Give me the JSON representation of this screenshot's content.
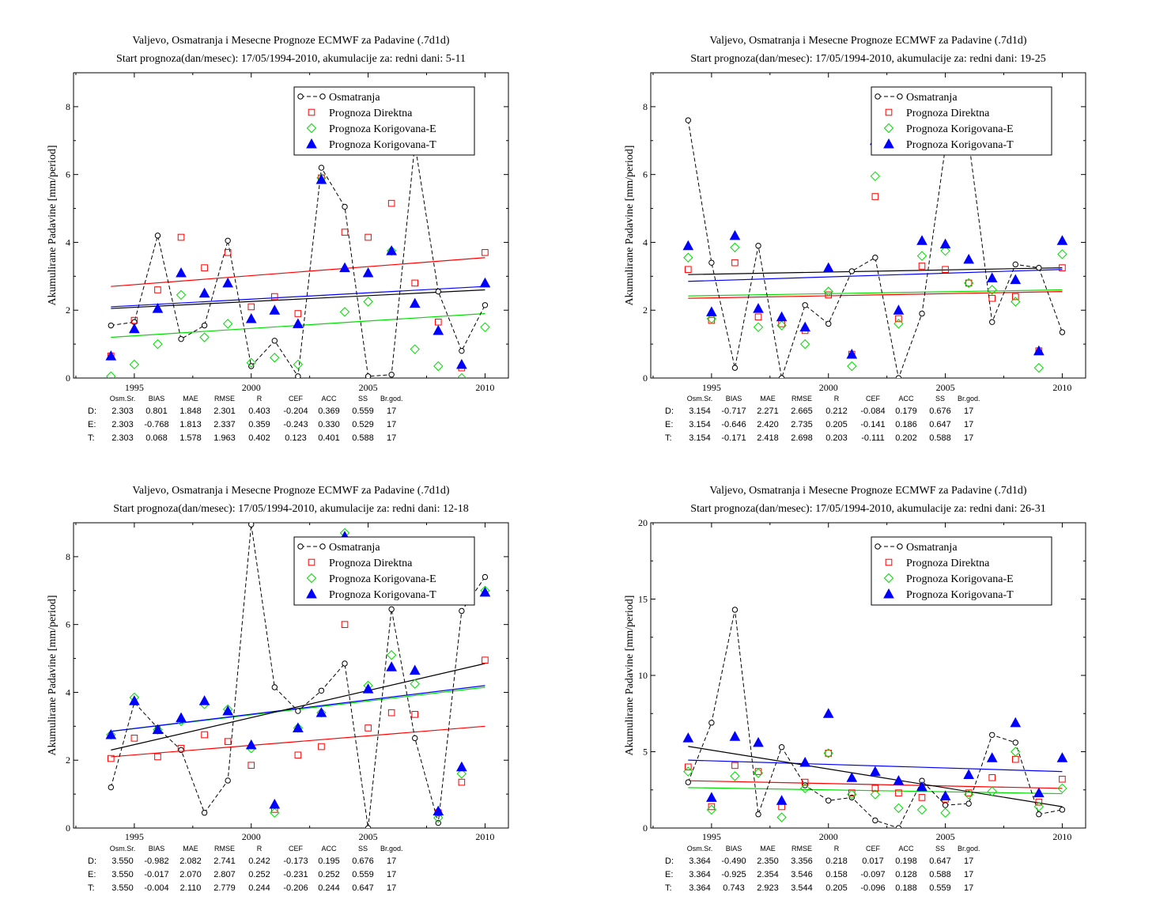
{
  "colors": {
    "obs": "#000000",
    "D": "#ff0000",
    "E": "#00dd00",
    "T": "#0000ff"
  },
  "legend": [
    "Osmatranja",
    "Prognoza Direktna",
    "Prognoza Korigovana-E",
    "Prognoza Korigovana-T"
  ],
  "stats_header": [
    "Osm.Sr.",
    "BIAS",
    "MAE",
    "RMSE",
    "R",
    "CEF",
    "ACC",
    "SS",
    "Br.god."
  ],
  "chart_data": [
    {
      "type": "scatter",
      "title": "Valjevo, Osmatranja i Mesecne Prognoze ECMWF za Padavine (.7d1d)",
      "subtitle": "Start prognoza(dan/mesec): 17/05/1994-2010, akumulacije za: redni dani: 5-11",
      "ylabel": "Akumulirane Padavine [mm/period]",
      "xlabel": "",
      "xlim": [
        1992.4,
        2011.0
      ],
      "ylim": [
        0,
        9
      ],
      "xticks": [
        1995,
        2000,
        2005,
        2010
      ],
      "yticks": [
        0,
        2,
        4,
        6,
        8
      ],
      "x": [
        1994,
        1995,
        1996,
        1997,
        1998,
        1999,
        2000,
        2001,
        2002,
        2003,
        2004,
        2005,
        2006,
        2007,
        2008,
        2009,
        2010
      ],
      "series": [
        {
          "name": "Osmatranja",
          "key": "obs",
          "values": [
            1.55,
            1.65,
            4.2,
            1.15,
            1.55,
            4.05,
            0.35,
            1.1,
            0.05,
            6.2,
            5.05,
            0.05,
            0.1,
            6.9,
            2.55,
            0.8,
            2.15
          ]
        },
        {
          "name": "Prognoza Direktna",
          "key": "D",
          "values": [
            0.65,
            1.7,
            2.6,
            4.15,
            3.25,
            3.7,
            2.1,
            2.4,
            1.9,
            5.9,
            4.3,
            4.15,
            5.15,
            2.8,
            1.65,
            0.3,
            3.7
          ]
        },
        {
          "name": "Prognoza Korigovana-E",
          "key": "E",
          "values": [
            0.05,
            0.4,
            1.0,
            2.45,
            1.2,
            1.6,
            0.45,
            0.6,
            0.4,
            5.9,
            1.95,
            2.25,
            3.75,
            0.85,
            0.35,
            0.0,
            1.5
          ]
        },
        {
          "name": "Prognoza Korigovana-T",
          "key": "T",
          "values": [
            0.65,
            1.45,
            2.05,
            3.1,
            2.5,
            2.8,
            1.75,
            2.0,
            1.6,
            5.85,
            3.25,
            3.1,
            3.75,
            2.2,
            1.4,
            0.4,
            2.8
          ]
        }
      ],
      "trends": {
        "obs": [
          2.05,
          2.6
        ],
        "D": [
          2.7,
          3.55
        ],
        "E": [
          1.2,
          1.9
        ],
        "T": [
          2.1,
          2.7
        ]
      },
      "stats": [
        {
          "label": "D:",
          "key": "D",
          "values": [
            "2.303",
            "0.801",
            "1.848",
            "2.301",
            "0.403",
            "-0.204",
            "0.369",
            "0.559",
            "17"
          ]
        },
        {
          "label": "E:",
          "key": "E",
          "values": [
            "2.303",
            "-0.768",
            "1.813",
            "2.337",
            "0.359",
            "-0.243",
            "0.330",
            "0.529",
            "17"
          ]
        },
        {
          "label": "T:",
          "key": "T",
          "values": [
            "2.303",
            "0.068",
            "1.578",
            "1.963",
            "0.402",
            "0.123",
            "0.401",
            "0.588",
            "17"
          ]
        }
      ]
    },
    {
      "type": "scatter",
      "title": "Valjevo, Osmatranja i Mesecne Prognoze ECMWF za Padavine (.7d1d)",
      "subtitle": "Start prognoza(dan/mesec): 17/05/1994-2010, akumulacije za: redni dani: 19-25",
      "ylabel": "Akumulirane Padavine [mm/period]",
      "xlabel": "",
      "xlim": [
        1992.4,
        2011.0
      ],
      "ylim": [
        0,
        9
      ],
      "xticks": [
        1995,
        2000,
        2005,
        2010
      ],
      "yticks": [
        0,
        2,
        4,
        6,
        8
      ],
      "x": [
        1994,
        1995,
        1996,
        1997,
        1998,
        1999,
        2000,
        2001,
        2002,
        2003,
        2004,
        2005,
        2006,
        2007,
        2008,
        2009,
        2010
      ],
      "series": [
        {
          "name": "Osmatranja",
          "key": "obs",
          "values": [
            7.6,
            3.4,
            0.3,
            3.9,
            0.0,
            2.15,
            1.6,
            3.15,
            3.55,
            0.0,
            1.9,
            6.8,
            7.0,
            1.65,
            3.35,
            3.25,
            1.35
          ]
        },
        {
          "name": "Prognoza Direktna",
          "key": "D",
          "values": [
            3.2,
            1.7,
            3.4,
            1.8,
            1.6,
            1.4,
            2.45,
            0.7,
            5.35,
            1.75,
            3.3,
            3.2,
            2.8,
            2.35,
            2.4,
            0.8,
            3.25
          ]
        },
        {
          "name": "Prognoza Korigovana-E",
          "key": "E",
          "values": [
            3.55,
            1.75,
            3.85,
            1.5,
            1.55,
            1.0,
            2.55,
            0.35,
            5.95,
            1.6,
            3.6,
            3.75,
            2.8,
            2.6,
            2.25,
            0.3,
            3.65
          ]
        },
        {
          "name": "Prognoza Korigovana-T",
          "key": "T",
          "values": [
            3.9,
            1.95,
            4.2,
            2.05,
            1.8,
            1.5,
            3.25,
            0.7,
            7.0,
            2.0,
            4.05,
            3.95,
            3.5,
            2.95,
            2.9,
            0.8,
            4.05
          ]
        }
      ],
      "trends": {
        "obs": [
          3.05,
          3.25
        ],
        "D": [
          2.35,
          2.55
        ],
        "E": [
          2.42,
          2.6
        ],
        "T": [
          2.85,
          3.2
        ]
      },
      "stats": [
        {
          "label": "D:",
          "key": "D",
          "values": [
            "3.154",
            "-0.717",
            "2.271",
            "2.665",
            "0.212",
            "-0.084",
            "0.179",
            "0.676",
            "17"
          ]
        },
        {
          "label": "E:",
          "key": "E",
          "values": [
            "3.154",
            "-0.646",
            "2.420",
            "2.735",
            "0.205",
            "-0.141",
            "0.186",
            "0.647",
            "17"
          ]
        },
        {
          "label": "T:",
          "key": "T",
          "values": [
            "3.154",
            "-0.171",
            "2.418",
            "2.698",
            "0.203",
            "-0.111",
            "0.202",
            "0.588",
            "17"
          ]
        }
      ]
    },
    {
      "type": "scatter",
      "title": "Valjevo, Osmatranja i Mesecne Prognoze ECMWF za Padavine (.7d1d)",
      "subtitle": "Start prognoza(dan/mesec): 17/05/1994-2010, akumulacije za: redni dani: 12-18",
      "ylabel": "Akumulirane Padavine [mm/period]",
      "xlabel": "",
      "xlim": [
        1992.4,
        2011.0
      ],
      "ylim": [
        0,
        9
      ],
      "xticks": [
        1995,
        2000,
        2005,
        2010
      ],
      "yticks": [
        0,
        2,
        4,
        6,
        8
      ],
      "x": [
        1994,
        1995,
        1996,
        1997,
        1998,
        1999,
        2000,
        2001,
        2002,
        2003,
        2004,
        2005,
        2006,
        2007,
        2008,
        2009,
        2010
      ],
      "series": [
        {
          "name": "Osmatranja",
          "key": "obs",
          "values": [
            1.2,
            3.7,
            2.95,
            2.3,
            0.45,
            1.4,
            8.95,
            4.15,
            3.45,
            4.05,
            4.85,
            0.0,
            6.45,
            2.65,
            0.15,
            6.4,
            7.4
          ]
        },
        {
          "name": "Prognoza Direktna",
          "key": "D",
          "values": [
            2.05,
            2.65,
            2.1,
            2.35,
            2.75,
            2.55,
            1.85,
            0.55,
            2.15,
            2.4,
            6.0,
            2.95,
            3.4,
            3.35,
            0.45,
            1.35,
            4.95
          ]
        },
        {
          "name": "Prognoza Korigovana-E",
          "key": "E",
          "values": [
            2.75,
            3.85,
            2.9,
            3.15,
            3.65,
            3.5,
            2.35,
            0.45,
            2.95,
            3.4,
            8.7,
            4.2,
            5.1,
            4.25,
            0.3,
            1.6,
            7.0
          ]
        },
        {
          "name": "Prognoza Korigovana-T",
          "key": "T",
          "values": [
            2.75,
            3.75,
            2.9,
            3.25,
            3.75,
            3.45,
            2.45,
            0.7,
            2.95,
            3.4,
            8.6,
            4.1,
            4.75,
            4.65,
            0.5,
            1.8,
            6.95
          ]
        }
      ],
      "trends": {
        "obs": [
          2.3,
          4.85
        ],
        "D": [
          2.1,
          3.0
        ],
        "E": [
          2.85,
          4.15
        ],
        "T": [
          2.85,
          4.2
        ]
      },
      "stats": [
        {
          "label": "D:",
          "key": "D",
          "values": [
            "3.550",
            "-0.982",
            "2.082",
            "2.741",
            "0.242",
            "-0.173",
            "0.195",
            "0.676",
            "17"
          ]
        },
        {
          "label": "E:",
          "key": "E",
          "values": [
            "3.550",
            "-0.017",
            "2.070",
            "2.807",
            "0.252",
            "-0.231",
            "0.252",
            "0.559",
            "17"
          ]
        },
        {
          "label": "T:",
          "key": "T",
          "values": [
            "3.550",
            "-0.004",
            "2.110",
            "2.779",
            "0.244",
            "-0.206",
            "0.244",
            "0.647",
            "17"
          ]
        }
      ]
    },
    {
      "type": "scatter",
      "title": "Valjevo, Osmatranja i Mesecne Prognoze ECMWF za Padavine (.7d1d)",
      "subtitle": "Start prognoza(dan/mesec): 17/05/1994-2010, akumulacije za: redni dani: 26-31",
      "ylabel": "Akumulirane Padavine [mm/period]",
      "xlabel": "",
      "xlim": [
        1992.4,
        2011.0
      ],
      "ylim": [
        0,
        20
      ],
      "xticks": [
        1995,
        2000,
        2005,
        2010
      ],
      "yticks": [
        0,
        5,
        10,
        15,
        20
      ],
      "x": [
        1994,
        1995,
        1996,
        1997,
        1998,
        1999,
        2000,
        2001,
        2002,
        2003,
        2004,
        2005,
        2006,
        2007,
        2008,
        2009,
        2010
      ],
      "series": [
        {
          "name": "Osmatranja",
          "key": "obs",
          "values": [
            3.0,
            6.9,
            14.3,
            0.9,
            5.3,
            2.8,
            1.8,
            2.0,
            0.5,
            0.0,
            3.1,
            1.5,
            1.6,
            6.1,
            5.6,
            0.9,
            1.2
          ]
        },
        {
          "name": "Prognoza Direktna",
          "key": "D",
          "values": [
            4.0,
            1.4,
            4.1,
            3.7,
            1.4,
            3.0,
            4.9,
            2.3,
            2.6,
            2.3,
            2.0,
            1.9,
            2.3,
            3.3,
            4.5,
            1.7,
            3.2
          ]
        },
        {
          "name": "Prognoza Korigovana-E",
          "key": "E",
          "values": [
            3.7,
            1.2,
            3.4,
            3.6,
            0.7,
            2.6,
            4.9,
            2.2,
            2.2,
            1.3,
            1.2,
            1.0,
            2.2,
            2.4,
            5.0,
            1.4,
            2.6
          ]
        },
        {
          "name": "Prognoza Korigovana-T",
          "key": "T",
          "values": [
            5.9,
            2.0,
            6.0,
            5.6,
            1.8,
            4.3,
            7.5,
            3.3,
            3.7,
            3.1,
            2.7,
            2.1,
            3.5,
            4.6,
            6.9,
            2.3,
            4.6
          ]
        }
      ],
      "trends": {
        "obs": [
          5.35,
          1.4
        ],
        "D": [
          3.1,
          2.6
        ],
        "E": [
          2.65,
          2.25
        ],
        "T": [
          4.45,
          3.7
        ]
      },
      "stats": [
        {
          "label": "D:",
          "key": "D",
          "values": [
            "3.364",
            "-0.490",
            "2.350",
            "3.356",
            "0.218",
            "0.017",
            "0.198",
            "0.647",
            "17"
          ]
        },
        {
          "label": "E:",
          "key": "E",
          "values": [
            "3.364",
            "-0.925",
            "2.354",
            "3.546",
            "0.158",
            "-0.097",
            "0.128",
            "0.588",
            "17"
          ]
        },
        {
          "label": "T:",
          "key": "T",
          "values": [
            "3.364",
            "0.743",
            "2.923",
            "3.544",
            "0.205",
            "-0.096",
            "0.188",
            "0.559",
            "17"
          ]
        }
      ]
    }
  ]
}
